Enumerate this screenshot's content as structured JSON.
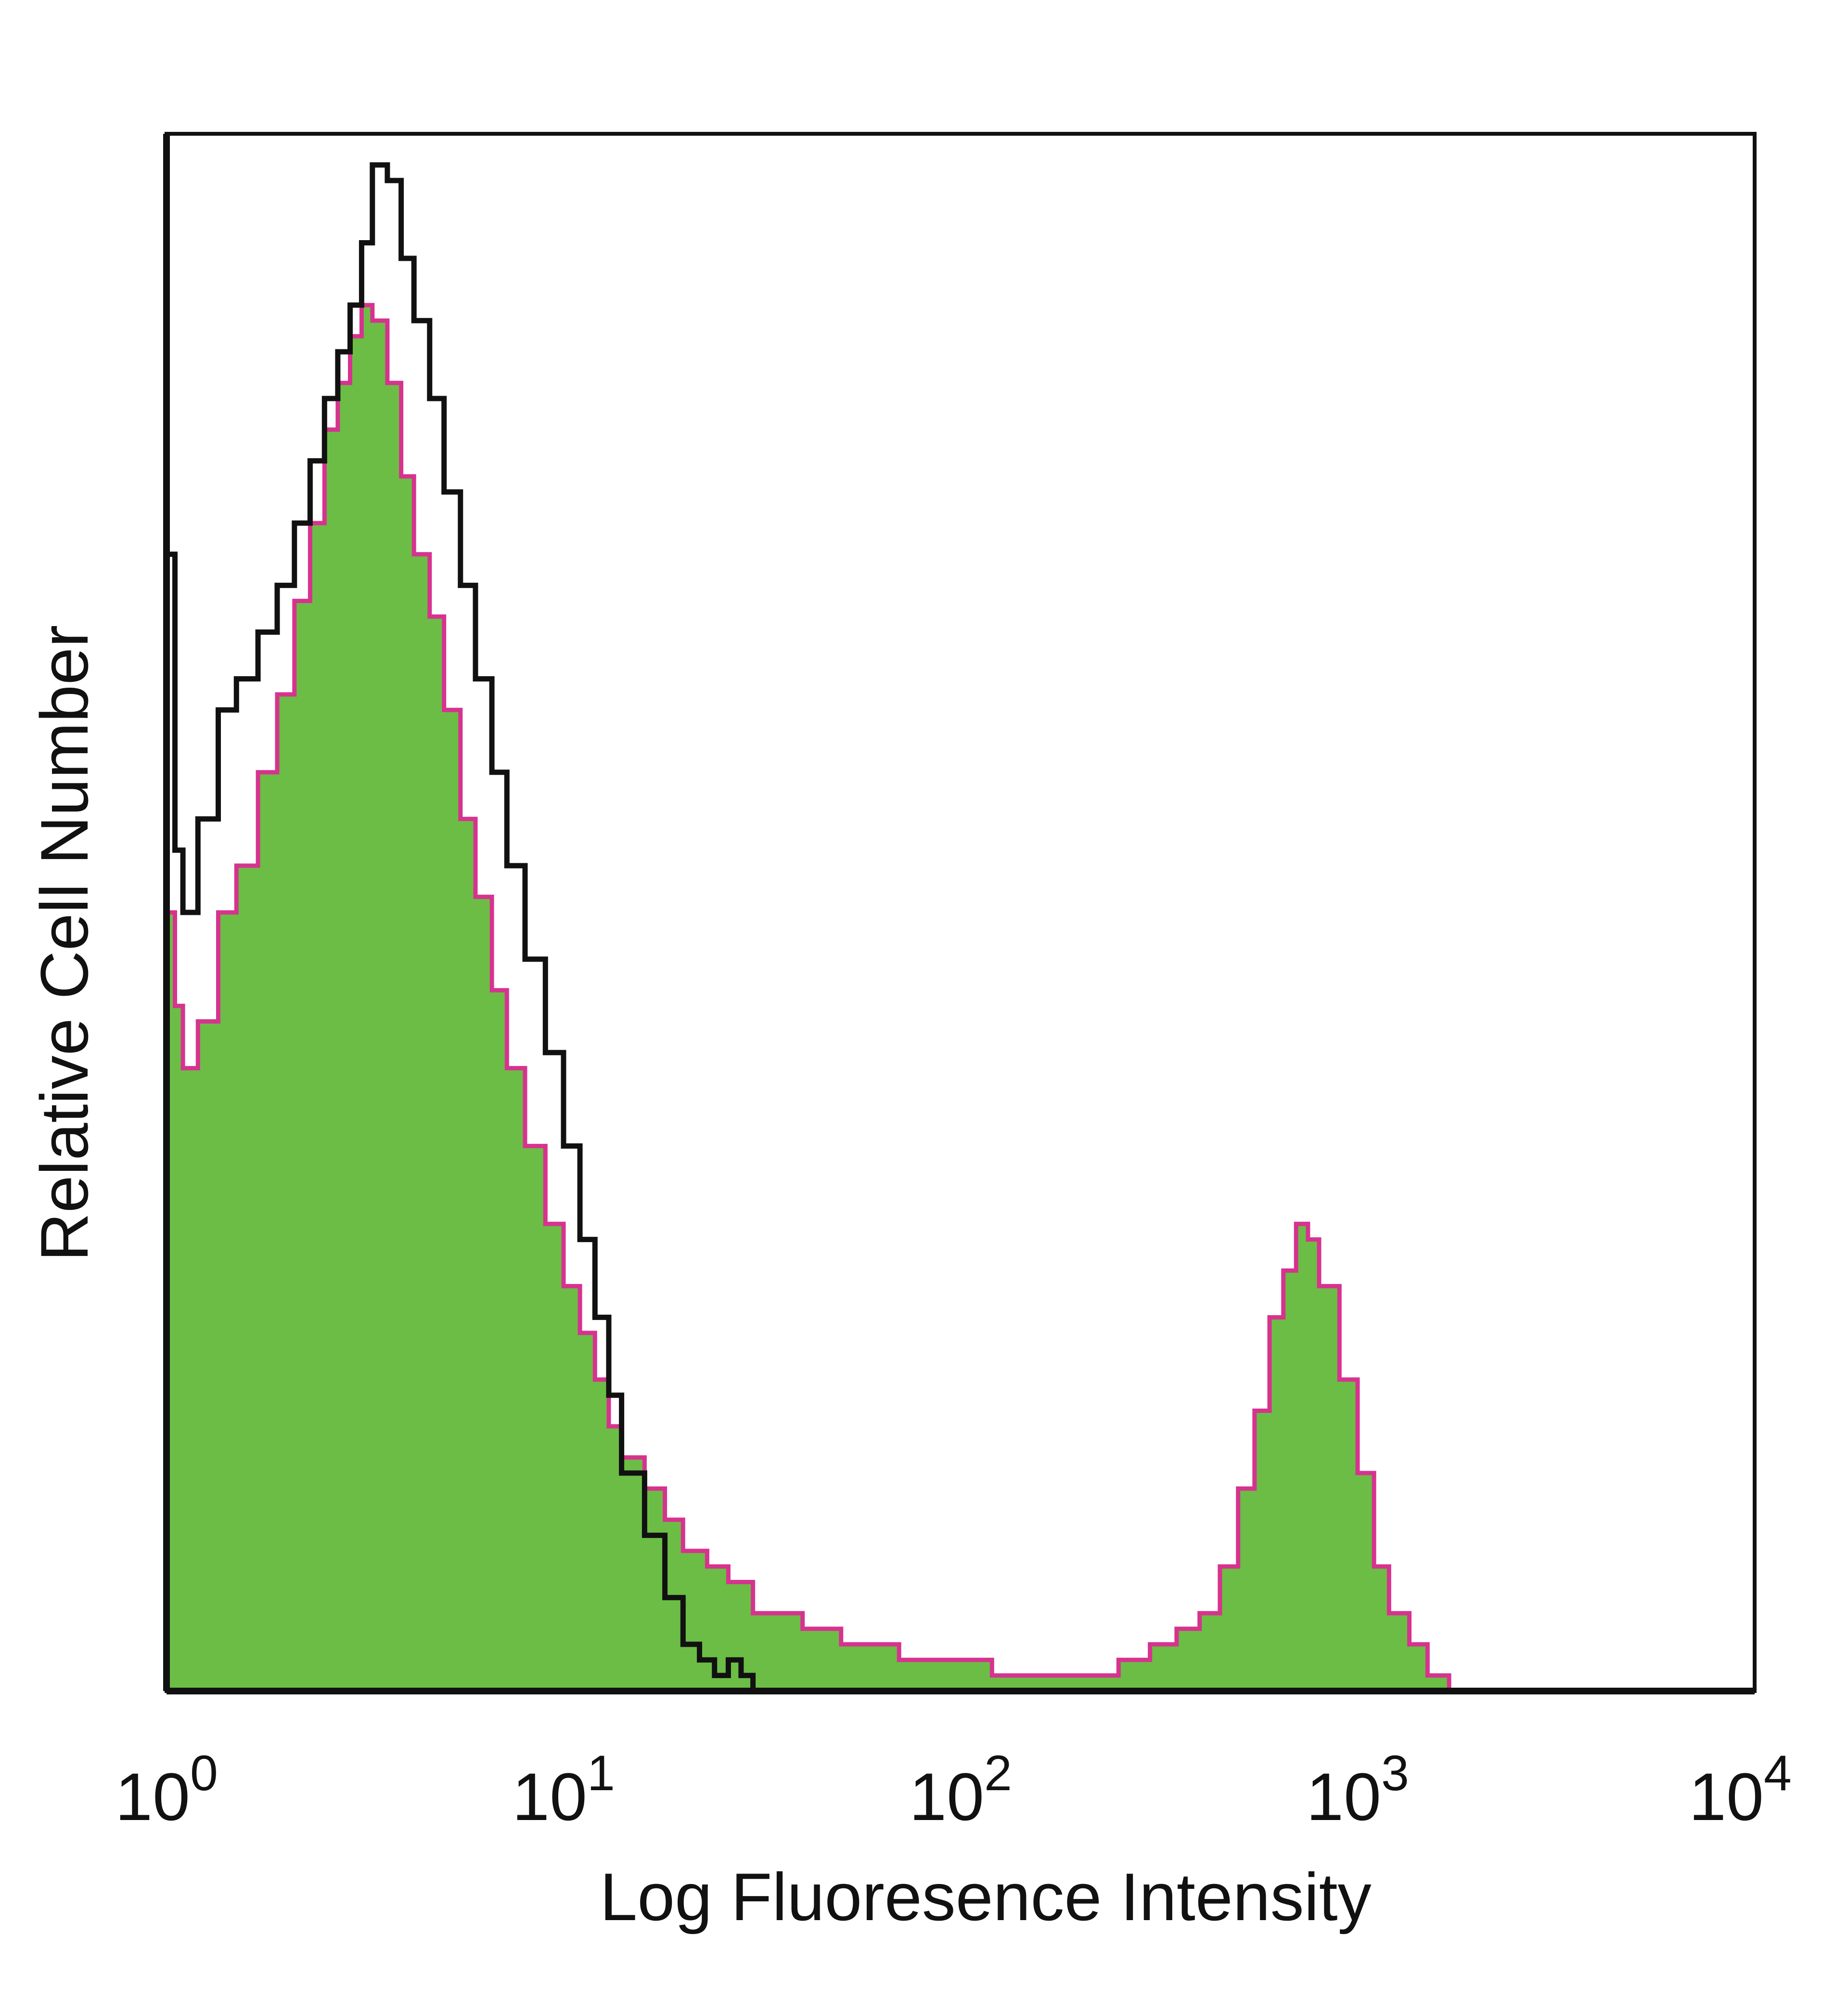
{
  "chart_data": {
    "type": "area",
    "xlabel": "Log Fluoresence Intensity",
    "ylabel": "Relative Cell Number",
    "x_scale": "log",
    "xlim": [
      1,
      10000
    ],
    "ylim": [
      0,
      100
    ],
    "x_ticks": [
      {
        "base": "10",
        "exp": "0"
      },
      {
        "base": "10",
        "exp": "1"
      },
      {
        "base": "10",
        "exp": "2"
      },
      {
        "base": "10",
        "exp": "3"
      },
      {
        "base": "10",
        "exp": "4"
      }
    ],
    "grid": false,
    "legend": "none",
    "series": [
      {
        "color": "#6cbd45",
        "outline_color": "#d6338f",
        "style": "filled",
        "x": [
          1,
          1.05,
          1.1,
          1.2,
          1.35,
          1.5,
          1.7,
          1.9,
          2.1,
          2.3,
          2.5,
          2.7,
          2.9,
          3.1,
          3.3,
          3.6,
          3.9,
          4.2,
          4.6,
          5,
          5.5,
          6,
          6.6,
          7.2,
          8,
          9,
          10,
          11,
          12,
          13,
          14,
          16,
          18,
          20,
          23,
          26,
          30,
          35,
          40,
          50,
          60,
          70,
          80,
          100,
          120,
          150,
          200,
          250,
          300,
          350,
          400,
          450,
          500,
          550,
          600,
          650,
          700,
          750,
          800,
          900,
          1000,
          1100,
          1200,
          1350,
          1500,
          1700
        ],
        "y": [
          50,
          44,
          40,
          43,
          50,
          53,
          59,
          64,
          70,
          75,
          81,
          84,
          87,
          89,
          88,
          84,
          78,
          73,
          69,
          63,
          56,
          51,
          45,
          40,
          35,
          30,
          26,
          23,
          20,
          17,
          15,
          13,
          11,
          9,
          8,
          7,
          5,
          5,
          4,
          3,
          3,
          2,
          2,
          2,
          1,
          1,
          1,
          2,
          3,
          4,
          5,
          8,
          13,
          18,
          24,
          27,
          30,
          29,
          26,
          20,
          14,
          8,
          5,
          3,
          1,
          0
        ]
      },
      {
        "color": "#111111",
        "style": "outline",
        "x": [
          1,
          1.05,
          1.1,
          1.2,
          1.35,
          1.5,
          1.7,
          1.9,
          2.1,
          2.3,
          2.5,
          2.7,
          2.9,
          3.1,
          3.3,
          3.6,
          3.9,
          4.2,
          4.6,
          5,
          5.5,
          6,
          6.6,
          7.2,
          8,
          9,
          10,
          11,
          12,
          13,
          14,
          16,
          18,
          20,
          22,
          24,
          26,
          28,
          30,
          40
        ],
        "y": [
          73,
          54,
          50,
          56,
          63,
          65,
          68,
          71,
          75,
          79,
          83,
          86,
          89,
          93,
          98,
          97,
          92,
          88,
          83,
          77,
          71,
          65,
          59,
          53,
          47,
          41,
          35,
          29,
          24,
          19,
          14,
          10,
          6,
          3,
          2,
          1,
          2,
          1,
          0,
          0
        ]
      }
    ]
  }
}
